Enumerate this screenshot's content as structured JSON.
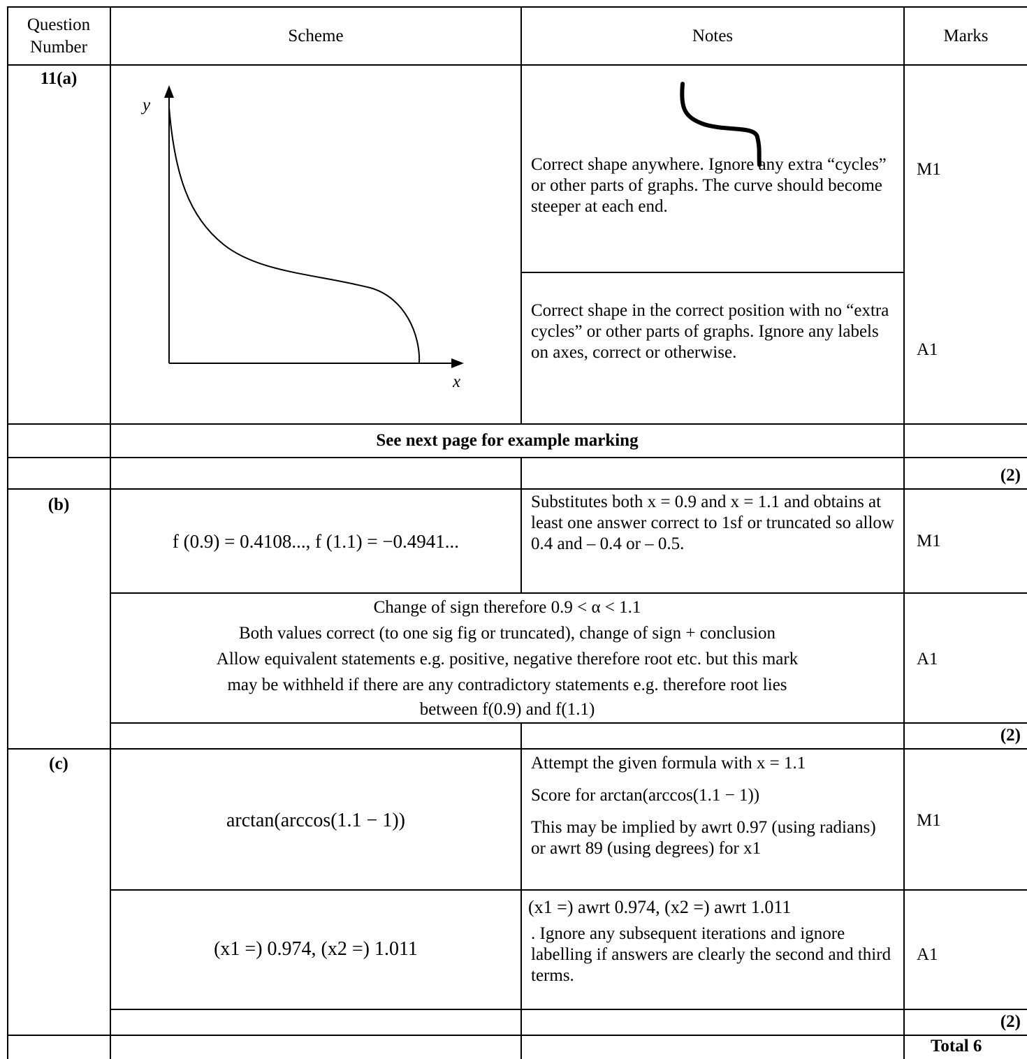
{
  "headers": {
    "question_number": "Question Number",
    "scheme": "Scheme",
    "notes": "Notes",
    "marks": "Marks"
  },
  "q11a": {
    "label": "11(a)",
    "graph_y_label": "y",
    "graph_x_label": "x",
    "note_m1": "Correct shape anywhere. Ignore any extra “cycles” or other parts of graphs. The curve should become steeper at each end.",
    "mark_m1": "M1",
    "note_a1": "Correct shape in the correct position with no “extra cycles” or other parts of graphs. Ignore any labels on axes, correct or otherwise.",
    "mark_a1": "A1",
    "see_next": "See next page for example marking",
    "total": "(2)"
  },
  "q11b": {
    "label": "(b)",
    "scheme_text": "f (0.9) = 0.4108..., f (1.1) = −0.4941...",
    "note_m1": "Substitutes both x = 0.9 and x = 1.1 and obtains at least one answer correct to 1sf or truncated so allow 0.4 and – 0.4 or – 0.5.",
    "mark_m1": "M1",
    "a1_line1": "Change of sign therefore 0.9 < α < 1.1",
    "a1_line2": "Both values correct (to one sig fig or truncated), change of sign + conclusion",
    "a1_line3": "Allow equivalent statements e.g. positive, negative therefore root etc. but this mark",
    "a1_line4": "may be withheld if there are any contradictory statements e.g. therefore root lies",
    "a1_line5": "between f(0.9) and f(1.1)",
    "mark_a1": "A1",
    "total": "(2)"
  },
  "q11c": {
    "label": "(c)",
    "scheme_m1": "arctan(arccos(1.1 − 1))",
    "note_m1_line1": "Attempt the given formula with x = 1.1",
    "note_m1_line2": "Score for arctan(arccos(1.1 − 1))",
    "note_m1_line3": "This may be implied by awrt 0.97 (using radians) or awrt 89 (using degrees) for x1",
    "mark_m1": "M1",
    "scheme_a1": "(x1 =) 0.974, (x2 =) 1.011",
    "note_a1_line1": "(x1 =) awrt 0.974, (x2 =) awrt 1.011",
    "note_a1_line2": ". Ignore any subsequent iterations and ignore labelling if answers are clearly the second and third terms.",
    "mark_a1": "A1",
    "total": "(2)"
  },
  "grand_total": "Total 6"
}
